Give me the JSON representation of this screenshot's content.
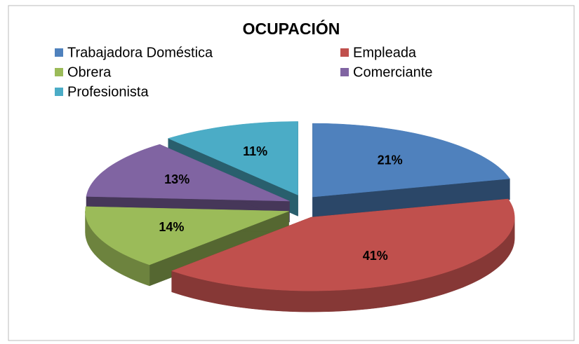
{
  "chart_data": {
    "type": "pie3d",
    "title": "OCUPACIÓN",
    "categories": [
      "Trabajadora Doméstica",
      "Empleada",
      "Obrera",
      "Comerciante",
      "Profesionista"
    ],
    "values": [
      21,
      41,
      14,
      13,
      11
    ],
    "value_labels": [
      "21%",
      "41%",
      "14%",
      "13%",
      "11%"
    ],
    "colors": [
      "#4f81bd",
      "#c0504d",
      "#9bbb59",
      "#8064a2",
      "#4bacc6"
    ]
  }
}
